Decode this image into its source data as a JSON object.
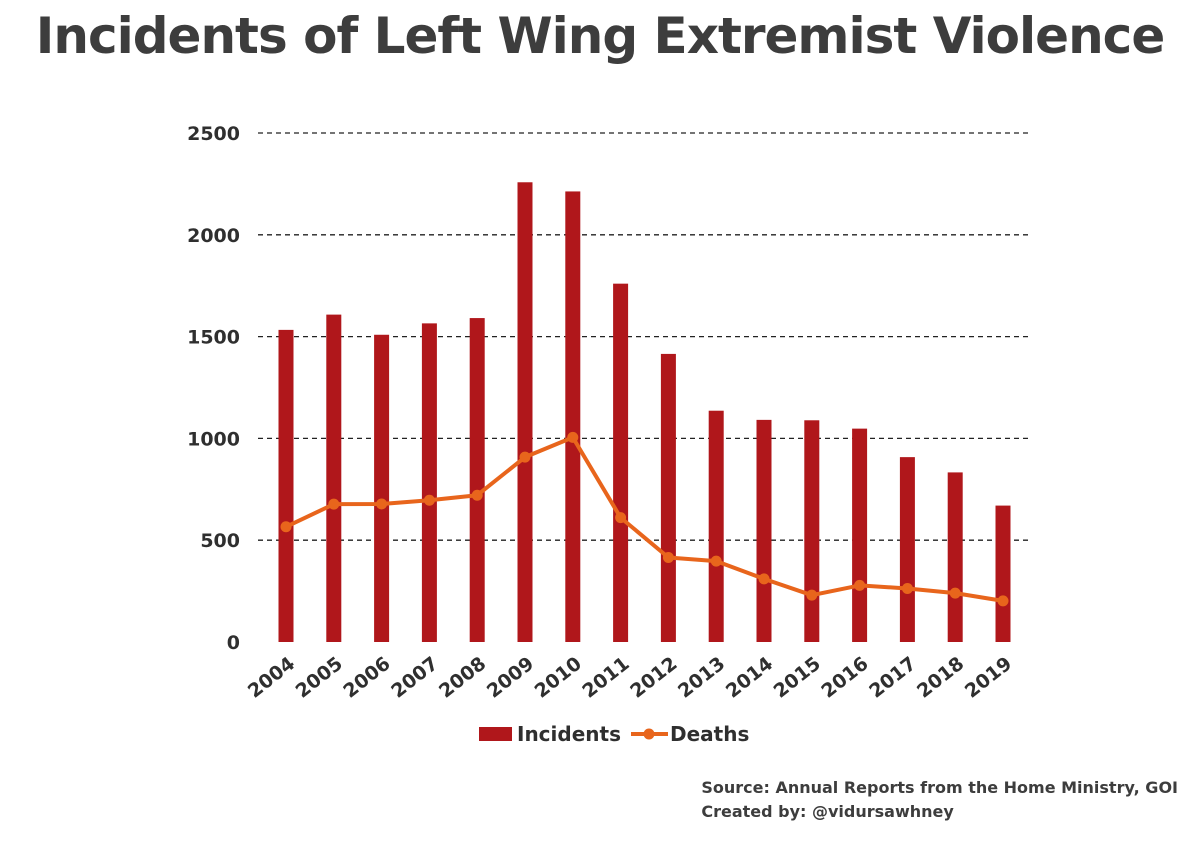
{
  "title": "Incidents of Left Wing Extremist Violence",
  "source": "Source: Annual Reports from the Home Ministry, GOI",
  "credit": "Created by: @vidursawhney",
  "colors": {
    "incidents": "#b0171b",
    "deaths": "#e8651c",
    "grid": "#222222"
  },
  "chart_data": {
    "type": "bar",
    "title": "Incidents of Left Wing Extremist Violence",
    "xlabel": "",
    "ylabel": "",
    "ylim": [
      0,
      2500
    ],
    "yticks": [
      0,
      500,
      1000,
      1500,
      2000,
      2500
    ],
    "grid": true,
    "legend": "bottom",
    "categories": [
      "2004",
      "2005",
      "2006",
      "2007",
      "2008",
      "2009",
      "2010",
      "2011",
      "2012",
      "2013",
      "2014",
      "2015",
      "2016",
      "2017",
      "2018",
      "2019"
    ],
    "series": [
      {
        "name": "Incidents",
        "type": "bar",
        "values": [
          1533,
          1608,
          1509,
          1565,
          1591,
          2258,
          2213,
          1760,
          1415,
          1136,
          1091,
          1089,
          1048,
          908,
          833,
          670
        ]
      },
      {
        "name": "Deaths",
        "type": "line",
        "values": [
          566,
          677,
          678,
          696,
          721,
          908,
          1005,
          611,
          415,
          397,
          310,
          230,
          278,
          263,
          240,
          202
        ]
      }
    ]
  }
}
